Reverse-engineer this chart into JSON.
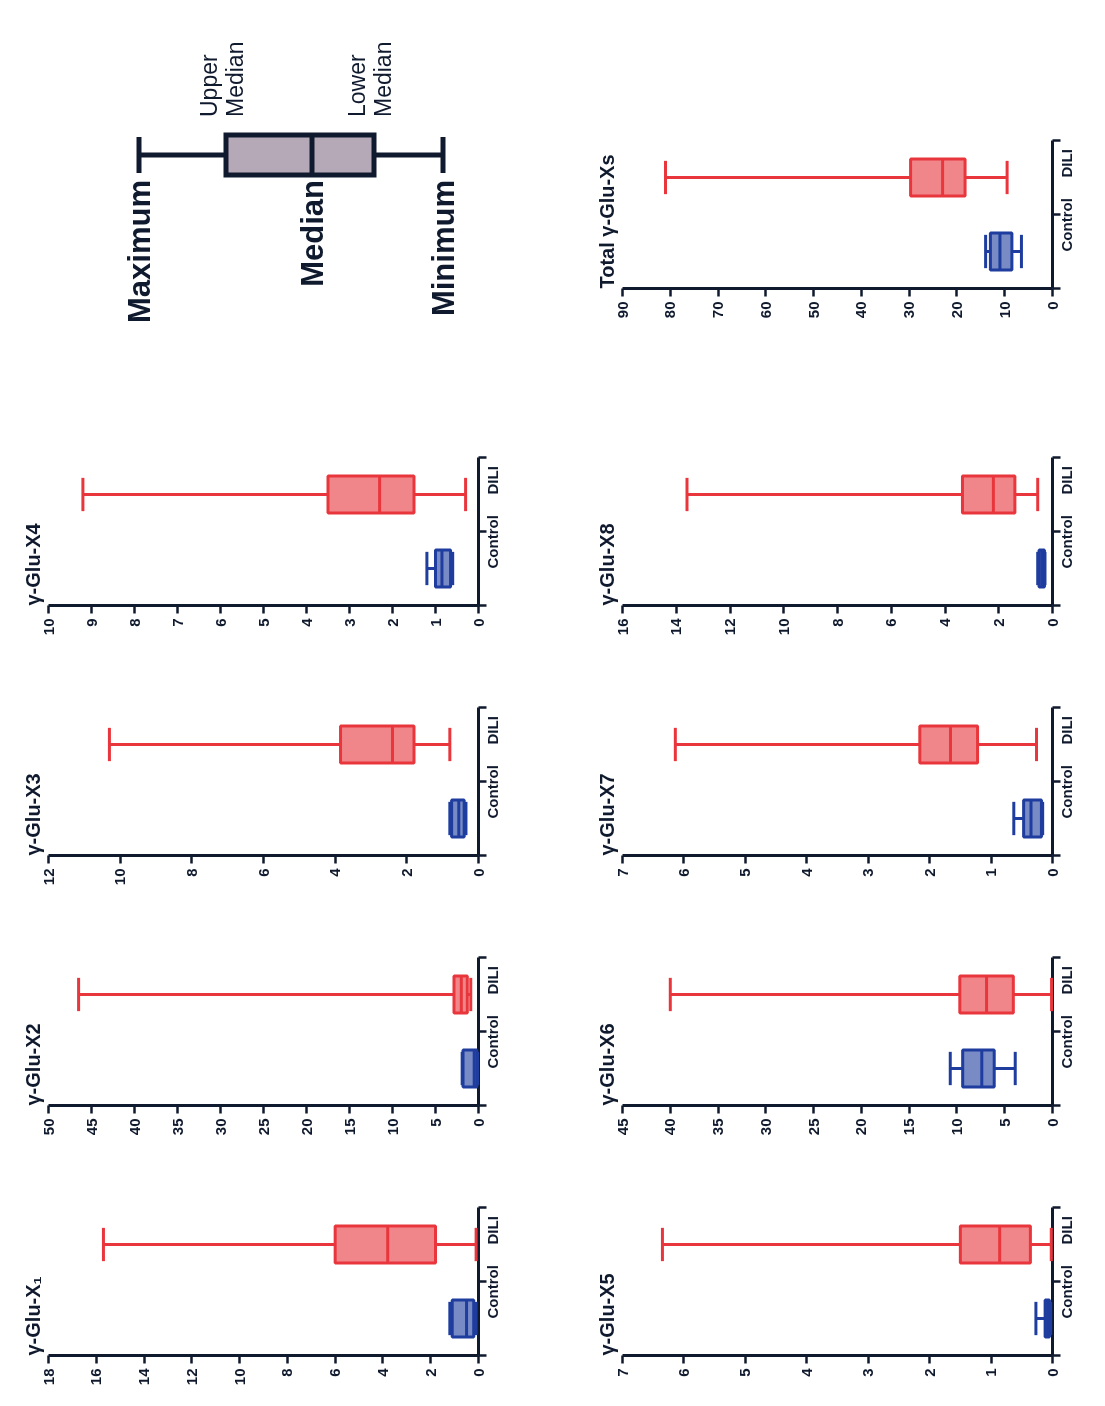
{
  "chart_data": [
    {
      "type": "other",
      "annotations": [
        "Maximum",
        "Upper Median",
        "Median",
        "Lower Median",
        "Minimum"
      ]
    },
    {
      "type": "box",
      "title": "Total γ-Glu-Xs",
      "orientation": "horizontal",
      "categories": [
        "DILI",
        "Control"
      ],
      "colors": [
        "#e8363c",
        "#1e3d9e"
      ],
      "boxes": [
        {
          "low": 9.5,
          "q1": 18.3,
          "median": 23,
          "q3": 29.7,
          "high": 81
        },
        {
          "low": 6.5,
          "q1": 8.5,
          "median": 11,
          "q3": 13,
          "high": 14
        }
      ],
      "xlim": [
        90,
        0
      ],
      "xticks": [
        0,
        10,
        20,
        30,
        40,
        50,
        60,
        70,
        80,
        90
      ]
    },
    {
      "type": "box",
      "title": "γ-Glu-X4",
      "orientation": "horizontal",
      "categories": [
        "DILI",
        "Control"
      ],
      "colors": [
        "#e8363c",
        "#1e3d9e"
      ],
      "boxes": [
        {
          "low": 0.3,
          "q1": 1.5,
          "median": 2.3,
          "q3": 3.5,
          "high": 9.2
        },
        {
          "low": 0.6,
          "q1": 0.65,
          "median": 0.85,
          "q3": 1.0,
          "high": 1.2
        }
      ],
      "xlim": [
        10,
        0
      ],
      "xticks": [
        0,
        1,
        2,
        3,
        4,
        5,
        6,
        7,
        8,
        9,
        10
      ]
    },
    {
      "type": "box",
      "title": "γ-Glu-X8",
      "orientation": "horizontal",
      "categories": [
        "DILI",
        "Control"
      ],
      "colors": [
        "#e8363c",
        "#1e3d9e"
      ],
      "boxes": [
        {
          "low": 0.55,
          "q1": 1.4,
          "median": 2.2,
          "q3": 3.35,
          "high": 13.6
        },
        {
          "low": 0.28,
          "q1": 0.3,
          "median": 0.4,
          "q3": 0.5,
          "high": 0.55
        }
      ],
      "xlim": [
        16,
        0
      ],
      "xticks": [
        0,
        2,
        4,
        6,
        8,
        10,
        12,
        14,
        16
      ]
    },
    {
      "type": "box",
      "title": "γ-Glu-X3",
      "orientation": "horizontal",
      "categories": [
        "DILI",
        "Control"
      ],
      "colors": [
        "#e8363c",
        "#1e3d9e"
      ],
      "boxes": [
        {
          "low": 0.8,
          "q1": 1.8,
          "median": 2.4,
          "q3": 3.85,
          "high": 10.3
        },
        {
          "low": 0.35,
          "q1": 0.4,
          "median": 0.55,
          "q3": 0.75,
          "high": 0.8
        }
      ],
      "xlim": [
        12,
        0
      ],
      "xticks": [
        0,
        2,
        4,
        6,
        8,
        10,
        12
      ]
    },
    {
      "type": "box",
      "title": "γ-Glu-X7",
      "orientation": "horizontal",
      "categories": [
        "DILI",
        "Control"
      ],
      "colors": [
        "#e8363c",
        "#1e3d9e"
      ],
      "boxes": [
        {
          "low": 0.26,
          "q1": 1.22,
          "median": 1.66,
          "q3": 2.16,
          "high": 6.14
        },
        {
          "low": 0.16,
          "q1": 0.18,
          "median": 0.35,
          "q3": 0.47,
          "high": 0.63
        }
      ],
      "xlim": [
        7,
        0
      ],
      "xticks": [
        0,
        1,
        2,
        3,
        4,
        5,
        6,
        7
      ]
    },
    {
      "type": "box",
      "title": "γ-Glu-X2",
      "orientation": "horizontal",
      "categories": [
        "DILI",
        "Control"
      ],
      "colors": [
        "#e8363c",
        "#1e3d9e"
      ],
      "boxes": [
        {
          "low": 0.9,
          "q1": 1.3,
          "median": 2.0,
          "q3": 2.85,
          "high": 46.5
        },
        {
          "low": 0.1,
          "q1": 0.2,
          "median": 0.5,
          "q3": 1.8,
          "high": 1.9
        }
      ],
      "xlim": [
        50,
        0
      ],
      "xticks": [
        0,
        5,
        10,
        15,
        20,
        25,
        30,
        35,
        40,
        45,
        50
      ]
    },
    {
      "type": "box",
      "title": "γ-Glu-X6",
      "orientation": "horizontal",
      "categories": [
        "DILI",
        "Control"
      ],
      "colors": [
        "#e8363c",
        "#1e3d9e"
      ],
      "boxes": [
        {
          "low": 0.1,
          "q1": 4.1,
          "median": 6.9,
          "q3": 9.7,
          "high": 40
        },
        {
          "low": 3.9,
          "q1": 6.1,
          "median": 7.4,
          "q3": 9.4,
          "high": 10.7
        }
      ],
      "xlim": [
        45,
        0
      ],
      "xticks": [
        0,
        5,
        10,
        15,
        20,
        25,
        30,
        35,
        40,
        45
      ]
    },
    {
      "type": "box",
      "title": "γ-Glu-X₁",
      "orientation": "horizontal",
      "categories": [
        "DILI",
        "Control"
      ],
      "colors": [
        "#e8363c",
        "#1e3d9e"
      ],
      "boxes": [
        {
          "low": 0.1,
          "q1": 1.8,
          "median": 3.8,
          "q3": 6.0,
          "high": 15.7
        },
        {
          "low": 0.1,
          "q1": 0.2,
          "median": 0.5,
          "q3": 1.1,
          "high": 1.2
        }
      ],
      "xlim": [
        18,
        0
      ],
      "xticks": [
        0,
        2,
        4,
        6,
        8,
        10,
        12,
        14,
        16,
        18
      ]
    },
    {
      "type": "box",
      "title": "γ-Glu-X5",
      "orientation": "horizontal",
      "categories": [
        "DILI",
        "Control"
      ],
      "colors": [
        "#e8363c",
        "#1e3d9e"
      ],
      "boxes": [
        {
          "low": 0.02,
          "q1": 0.36,
          "median": 0.86,
          "q3": 1.5,
          "high": 6.35
        },
        {
          "low": 0.03,
          "q1": 0.05,
          "median": 0.08,
          "q3": 0.12,
          "high": 0.27
        }
      ],
      "xlim": [
        7,
        0
      ],
      "xticks": [
        0,
        1,
        2,
        3,
        4,
        5,
        6,
        7
      ]
    }
  ]
}
